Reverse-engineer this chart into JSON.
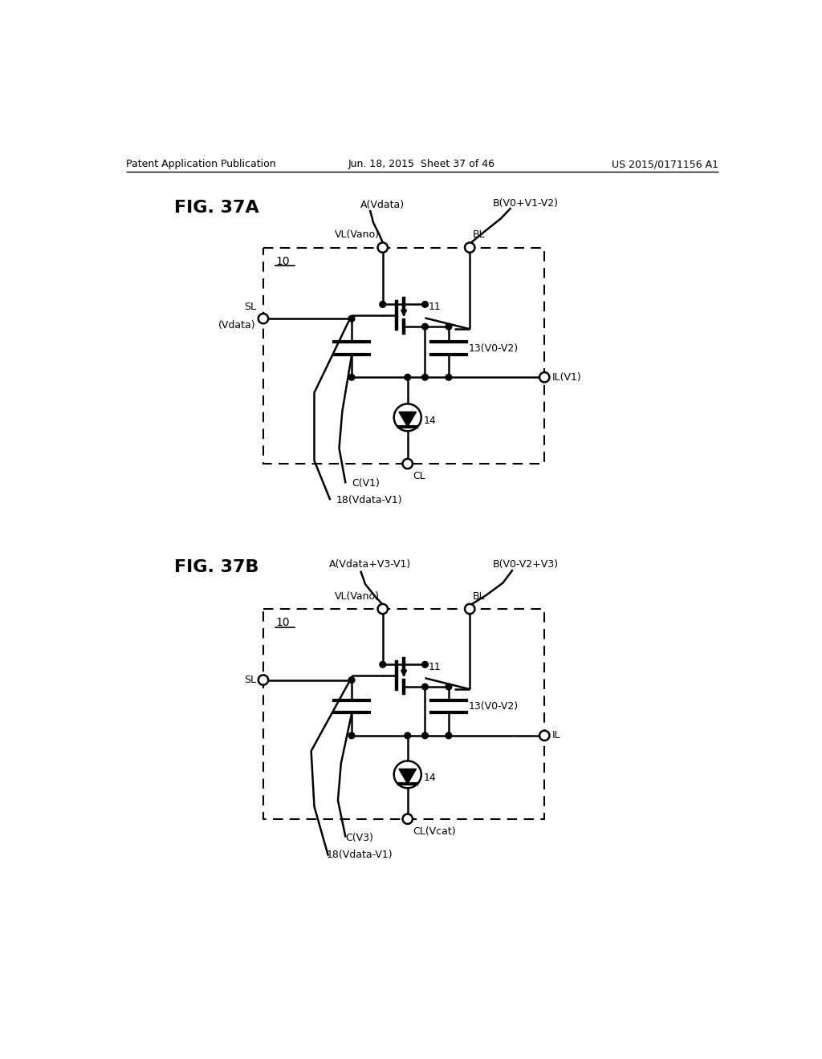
{
  "header_left": "Patent Application Publication",
  "header_mid": "Jun. 18, 2015  Sheet 37 of 46",
  "header_right": "US 2015/0171156 A1",
  "fig_a_label": "FIG. 37A",
  "fig_b_label": "FIG. 37B",
  "background": "#ffffff",
  "line_color": "#000000",
  "font_size_header": 9,
  "font_size_label": 10,
  "font_size_fig": 16
}
